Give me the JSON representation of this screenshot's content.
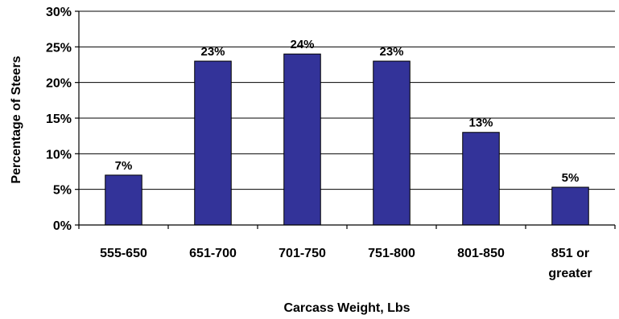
{
  "chart_data": {
    "type": "bar",
    "categories": [
      [
        "555-650"
      ],
      [
        "651-700"
      ],
      [
        "701-750"
      ],
      [
        "751-800"
      ],
      [
        "801-850"
      ],
      [
        "851 or",
        "greater"
      ]
    ],
    "values": [
      7,
      23,
      24,
      23,
      13,
      5.3
    ],
    "data_labels": [
      "7%",
      "23%",
      "24%",
      "23%",
      "13%",
      "5%"
    ],
    "xlabel": "Carcass Weight, Lbs",
    "ylabel": "Percentage of Steers",
    "ylim": [
      0,
      30
    ],
    "yticks": [
      0,
      5,
      10,
      15,
      20,
      25,
      30
    ],
    "ytick_labels": [
      "0%",
      "5%",
      "10%",
      "15%",
      "20%",
      "25%",
      "30%"
    ],
    "grid": true,
    "legend": "none",
    "bar_color": "#333399"
  }
}
